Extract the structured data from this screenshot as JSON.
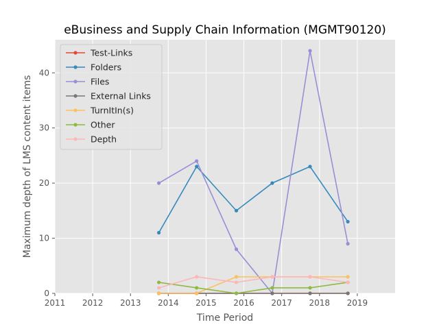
{
  "chart_data": {
    "type": "line",
    "title": "eBusiness and Supply Chain Information (MGMT90120)",
    "xlabel": "Time Period",
    "ylabel": "Maximum depth of LMS content items",
    "xlim": [
      2011,
      2020
    ],
    "ylim": [
      0,
      46
    ],
    "x_ticks": [
      "2011",
      "2012",
      "2013",
      "2014",
      "2015",
      "2016",
      "2017",
      "2018",
      "2019"
    ],
    "y_ticks": [
      "0",
      "10",
      "20",
      "30",
      "40"
    ],
    "grid": true,
    "legend_position": "upper-left",
    "x": [
      2013.75,
      2014.75,
      2015.8,
      2016.75,
      2017.75,
      2018.75
    ],
    "series": [
      {
        "name": "Test-Links",
        "color": "#E24A33",
        "values": [
          0,
          0,
          0,
          0,
          0,
          0
        ]
      },
      {
        "name": "Folders",
        "color": "#348ABD",
        "values": [
          11,
          23,
          15,
          20,
          23,
          13
        ]
      },
      {
        "name": "Files",
        "color": "#988ED5",
        "values": [
          20,
          24,
          8,
          0,
          44,
          9
        ]
      },
      {
        "name": "External Links",
        "color": "#777777",
        "values": [
          0,
          0,
          0,
          0,
          0,
          0
        ]
      },
      {
        "name": "TurnItIn(s)",
        "color": "#FBC15E",
        "values": [
          0,
          0,
          3,
          3,
          3,
          3
        ]
      },
      {
        "name": "Other",
        "color": "#8EBA42",
        "values": [
          2,
          1,
          0,
          1,
          1,
          2
        ]
      },
      {
        "name": "Depth",
        "color": "#FFB5B8",
        "values": [
          1,
          3,
          2,
          3,
          3,
          2
        ]
      }
    ]
  }
}
